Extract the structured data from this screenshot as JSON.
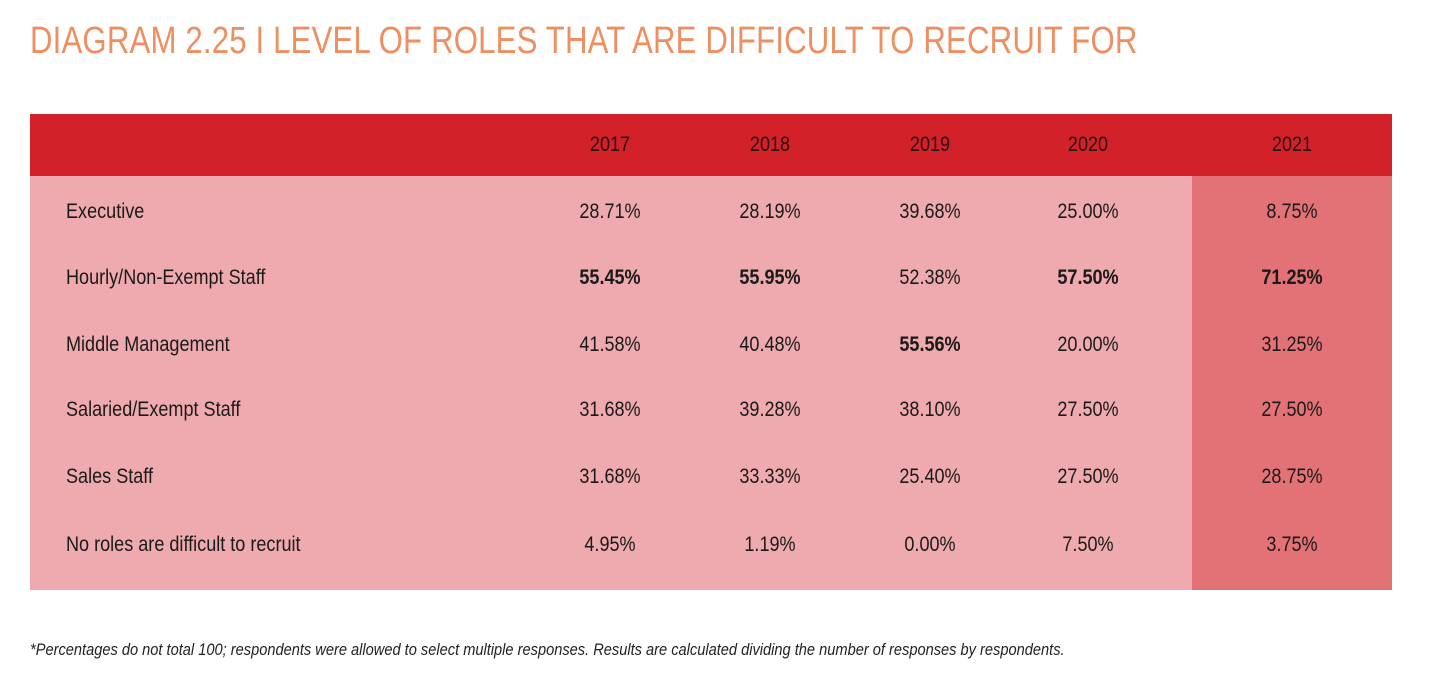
{
  "title": "DIAGRAM 2.25 I LEVEL OF ROLES THAT ARE DIFFICULT TO RECRUIT FOR",
  "colors": {
    "title": "#ee8f62",
    "header_bg": "#d22128",
    "body_bg": "#eeaaae",
    "highlight_col_bg": "#e37277"
  },
  "table": {
    "columns": [
      "2017",
      "2018",
      "2019",
      "2020",
      "2021"
    ],
    "highlighted_column": "2021",
    "rows": [
      {
        "label": "Executive",
        "values": [
          "28.71%",
          "28.19%",
          "39.68%",
          "25.00%",
          "8.75%"
        ],
        "bold": [
          false,
          false,
          false,
          false,
          false
        ]
      },
      {
        "label": "Hourly/Non-Exempt Staff",
        "values": [
          "55.45%",
          "55.95%",
          "52.38%",
          "57.50%",
          "71.25%"
        ],
        "bold": [
          true,
          true,
          false,
          true,
          true
        ]
      },
      {
        "label": "Middle Management",
        "values": [
          "41.58%",
          "40.48%",
          "55.56%",
          "20.00%",
          "31.25%"
        ],
        "bold": [
          false,
          false,
          true,
          false,
          false
        ]
      },
      {
        "label": "Salaried/Exempt Staff",
        "values": [
          "31.68%",
          "39.28%",
          "38.10%",
          "27.50%",
          "27.50%"
        ],
        "bold": [
          false,
          false,
          false,
          false,
          false
        ]
      },
      {
        "label": "Sales Staff",
        "values": [
          "31.68%",
          "33.33%",
          "25.40%",
          "27.50%",
          "28.75%"
        ],
        "bold": [
          false,
          false,
          false,
          false,
          false
        ]
      },
      {
        "label": "No roles are difficult to recruit",
        "values": [
          "4.95%",
          "1.19%",
          "0.00%",
          "7.50%",
          "3.75%"
        ],
        "bold": [
          false,
          false,
          false,
          false,
          false
        ]
      }
    ]
  },
  "footnote": "*Percentages do not total 100; respondents were allowed to select multiple responses. Results are calculated dividing the number of responses by respondents."
}
